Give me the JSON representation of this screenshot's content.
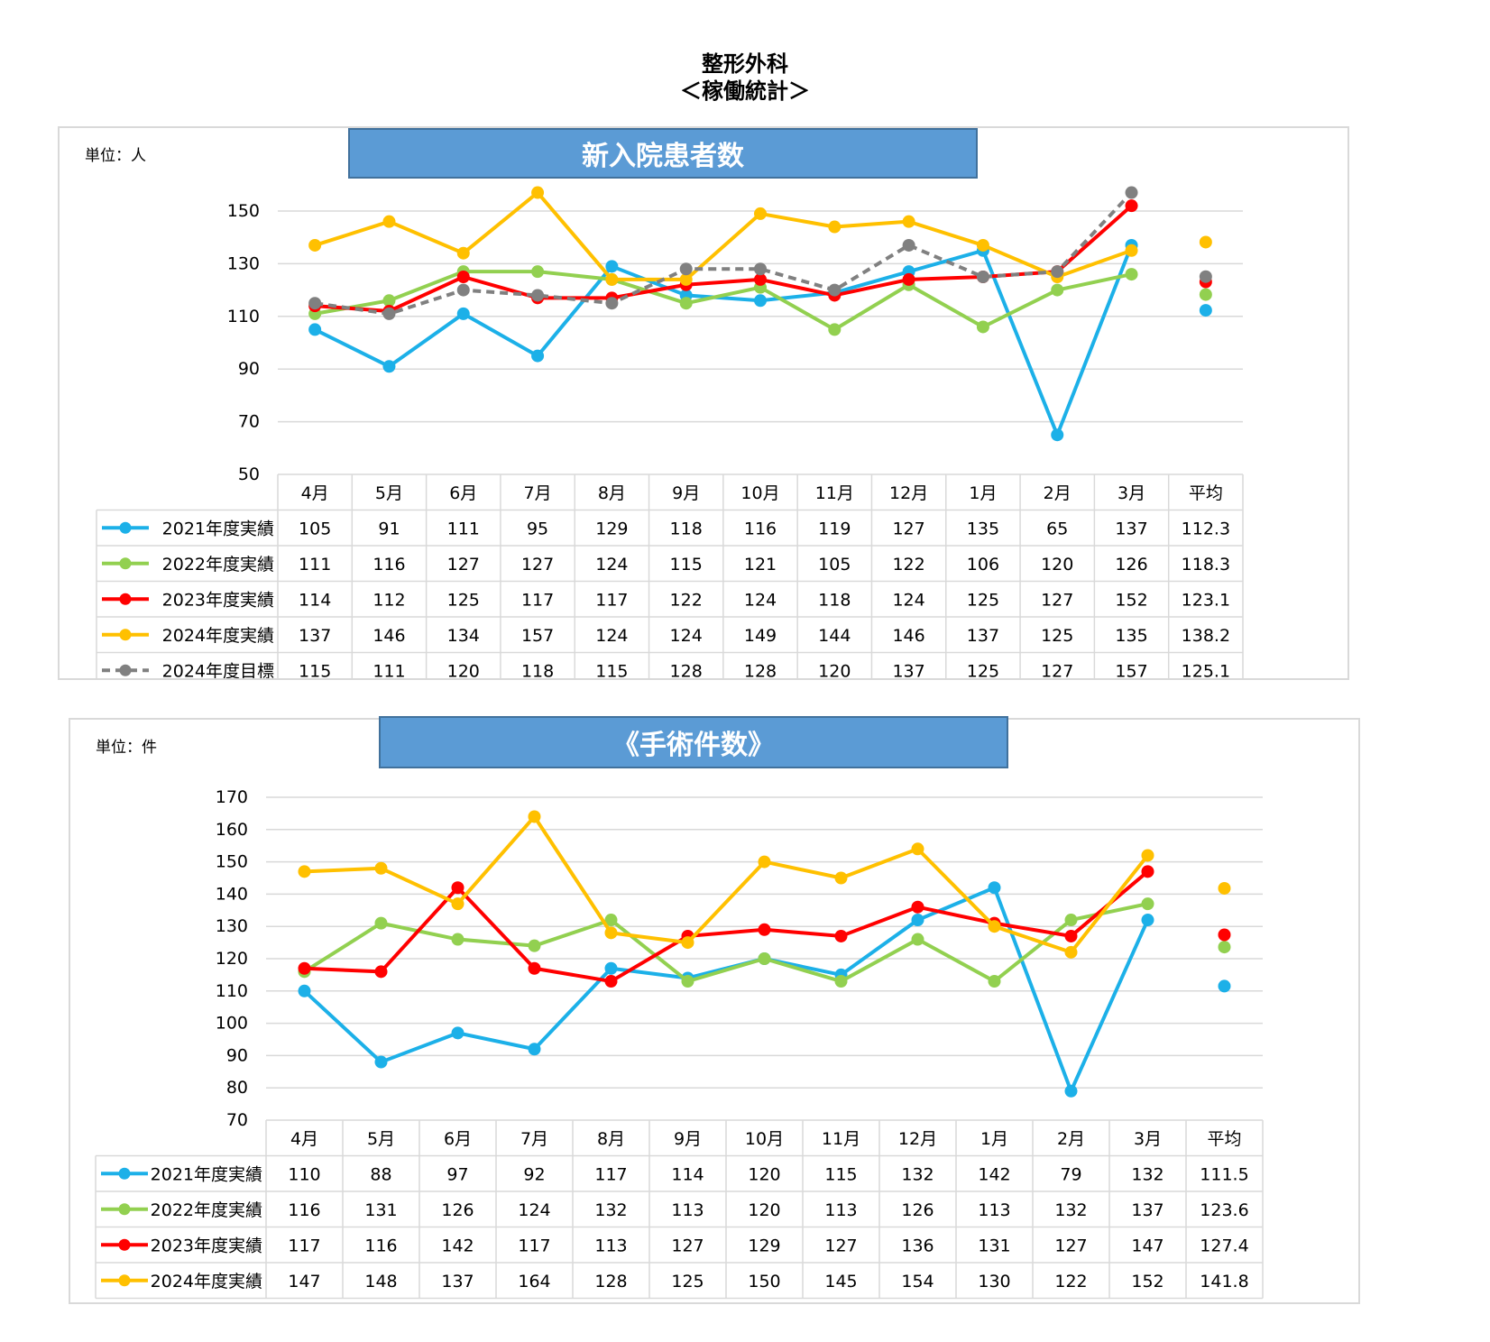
{
  "header": {
    "title_line1": "整形外科",
    "title_line2": "＜稼働統計＞"
  },
  "chart_data": [
    {
      "type": "line",
      "title": "新入院患者数",
      "unit_label": "単位：人",
      "categories": [
        "4月",
        "5月",
        "6月",
        "7月",
        "8月",
        "9月",
        "10月",
        "11月",
        "12月",
        "1月",
        "2月",
        "3月"
      ],
      "average_label": "平均",
      "ylim": [
        50,
        150
      ],
      "yticks": [
        50,
        70,
        90,
        110,
        130,
        150
      ],
      "series": [
        {
          "name": "2021年度実績",
          "color": "#1cb0e8",
          "dashed": false,
          "values": [
            105,
            91,
            111,
            95,
            129,
            118,
            116,
            119,
            127,
            135,
            65,
            137
          ],
          "average": "112.3"
        },
        {
          "name": "2022年度実績",
          "color": "#92d050",
          "dashed": false,
          "values": [
            111,
            116,
            127,
            127,
            124,
            115,
            121,
            105,
            122,
            106,
            120,
            126
          ],
          "average": "118.3"
        },
        {
          "name": "2023年度実績",
          "color": "#ff0000",
          "dashed": false,
          "values": [
            114,
            112,
            125,
            117,
            117,
            122,
            124,
            118,
            124,
            125,
            127,
            152
          ],
          "average": "123.1"
        },
        {
          "name": "2024年度実績",
          "color": "#ffc000",
          "dashed": false,
          "values": [
            137,
            146,
            134,
            157,
            124,
            124,
            149,
            144,
            146,
            137,
            125,
            135
          ],
          "average": "138.2"
        },
        {
          "name": "2024年度目標",
          "color": "#808080",
          "dashed": true,
          "values": [
            115,
            111,
            120,
            118,
            115,
            128,
            128,
            120,
            137,
            125,
            127,
            157
          ],
          "average": "125.1"
        }
      ]
    },
    {
      "type": "line",
      "title": "《手術件数》",
      "unit_label": "単位：件",
      "categories": [
        "4月",
        "5月",
        "6月",
        "7月",
        "8月",
        "9月",
        "10月",
        "11月",
        "12月",
        "1月",
        "2月",
        "3月"
      ],
      "average_label": "平均",
      "ylim": [
        70,
        170
      ],
      "yticks": [
        70,
        80,
        90,
        100,
        110,
        120,
        130,
        140,
        150,
        160,
        170
      ],
      "series": [
        {
          "name": "2021年度実績",
          "color": "#1cb0e8",
          "dashed": false,
          "values": [
            110,
            88,
            97,
            92,
            117,
            114,
            120,
            115,
            132,
            142,
            79,
            132
          ],
          "average": "111.5"
        },
        {
          "name": "2022年度実績",
          "color": "#92d050",
          "dashed": false,
          "values": [
            116,
            131,
            126,
            124,
            132,
            113,
            120,
            113,
            126,
            113,
            132,
            137
          ],
          "average": "123.6"
        },
        {
          "name": "2023年度実績",
          "color": "#ff0000",
          "dashed": false,
          "values": [
            117,
            116,
            142,
            117,
            113,
            127,
            129,
            127,
            136,
            131,
            127,
            147
          ],
          "average": "127.4"
        },
        {
          "name": "2024年度実績",
          "color": "#ffc000",
          "dashed": false,
          "values": [
            147,
            148,
            137,
            164,
            128,
            125,
            150,
            145,
            154,
            130,
            122,
            152
          ],
          "average": "141.8"
        }
      ]
    }
  ]
}
